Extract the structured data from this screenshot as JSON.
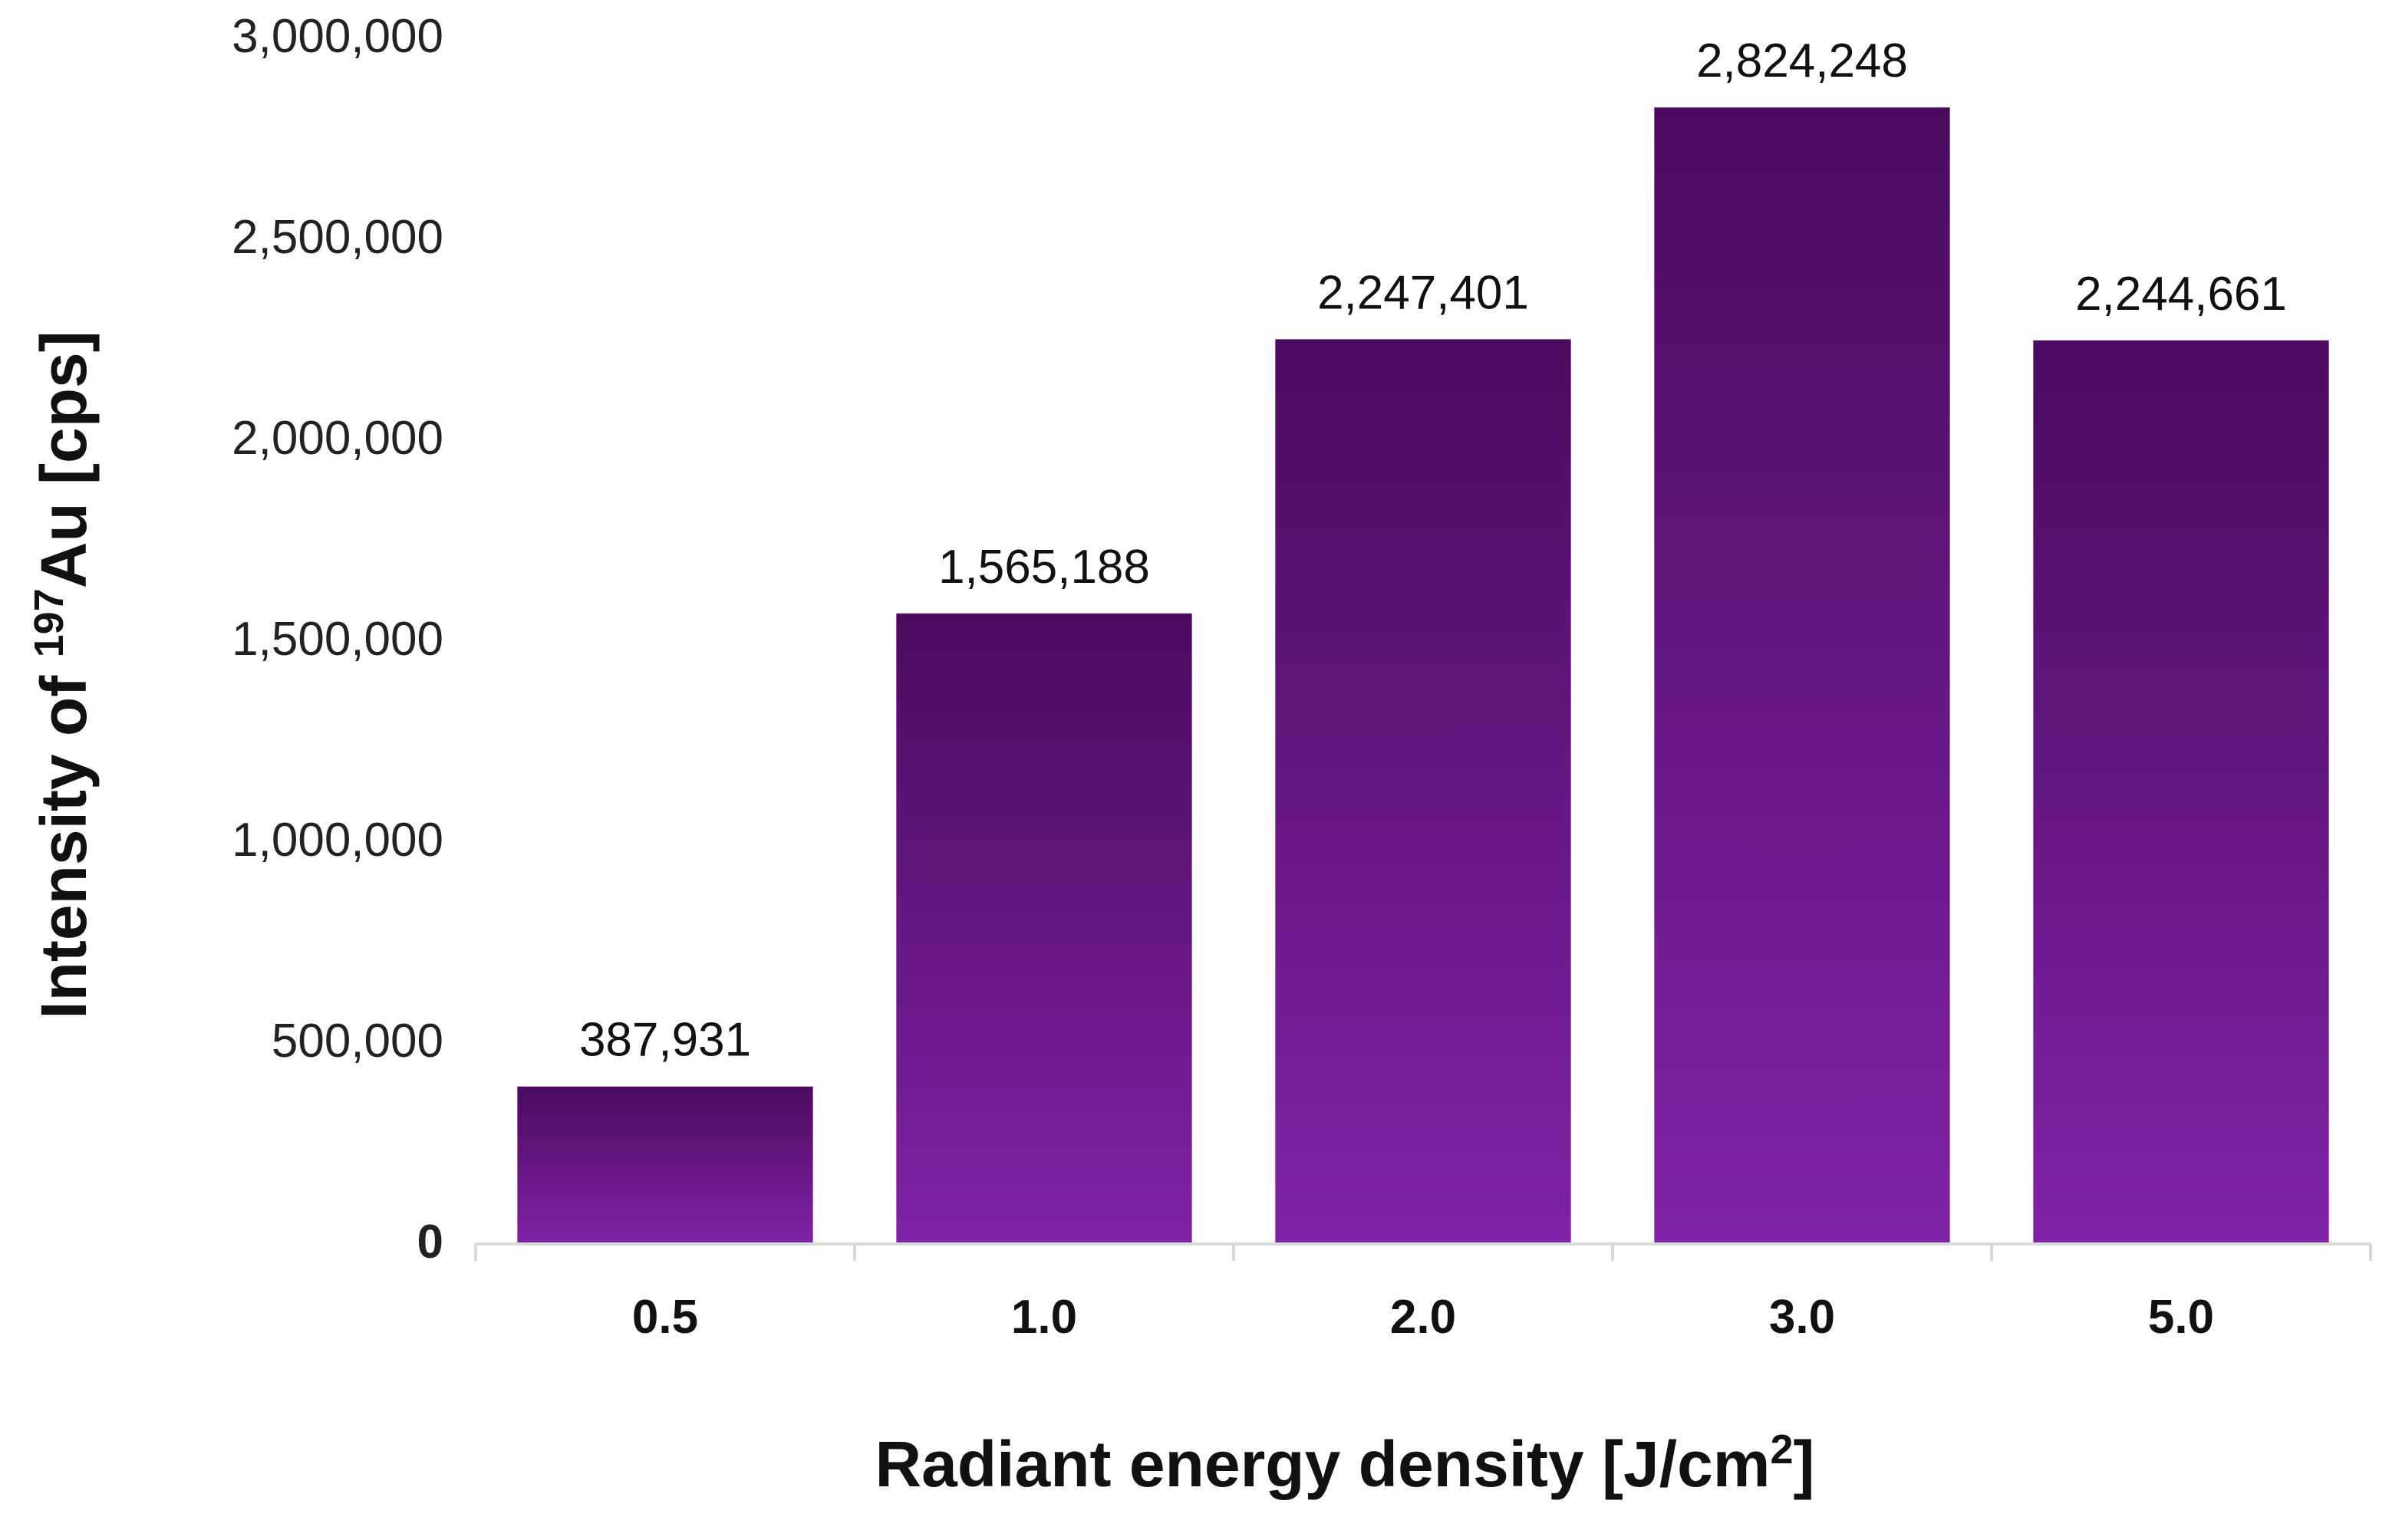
{
  "chart_data": {
    "type": "bar",
    "categories": [
      "0.5",
      "1.0",
      "2.0",
      "3.0",
      "5.0"
    ],
    "values": [
      387931,
      1565188,
      2247401,
      2824248,
      2244661
    ],
    "data_labels": [
      "387,931",
      "1,565,188",
      "2,247,401",
      "2,824,248",
      "2,244,661"
    ],
    "ylim": [
      0,
      3000000
    ],
    "yticks": [
      0,
      500000,
      1000000,
      1500000,
      2000000,
      2500000,
      3000000
    ],
    "ytick_labels": [
      "0",
      "500,000",
      "1,000,000",
      "1,500,000",
      "2,000,000",
      "2,500,000",
      "3,000,000"
    ],
    "xlabel": {
      "text": "Radiant energy density [J/cm",
      "superscript": "2",
      "suffix": "]"
    },
    "ylabel": {
      "prefix": "Intensity of ",
      "superscript": "197",
      "text": "Au [cps]"
    },
    "grid": false,
    "legend": "none",
    "colors": {
      "bar_top": "#4a0b5e",
      "bar_bottom": "#7f22a6",
      "axis": "#d9d9d9"
    }
  }
}
